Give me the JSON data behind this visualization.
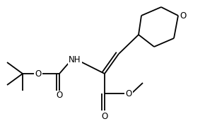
{
  "bg_color": "#ffffff",
  "line_color": "#000000",
  "lw": 1.3,
  "fs": 8.5,
  "figsize": [
    2.9,
    1.92
  ],
  "dpi": 100,
  "xlim": [
    0,
    290
  ],
  "ylim": [
    0,
    192
  ]
}
